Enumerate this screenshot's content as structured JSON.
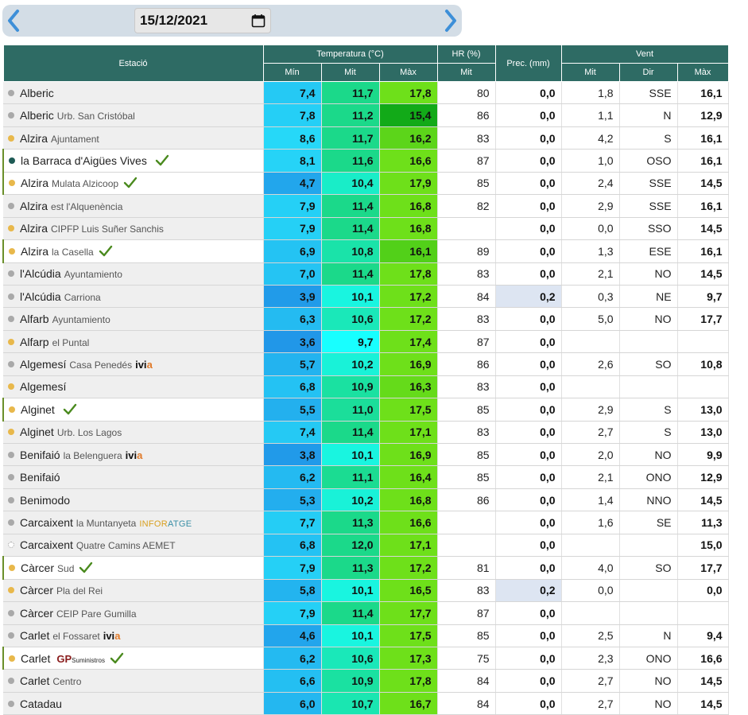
{
  "date": {
    "value": "15/12/2021",
    "prev_icon": "chevron-left-icon",
    "next_icon": "chevron-right-icon",
    "calendar_icon": "calendar-icon"
  },
  "headers": {
    "station": "Estació",
    "temperature": "Temperatura (°C)",
    "humidity": "HR (%)",
    "precipitation": "Prec. (mm)",
    "wind": "Vent",
    "sub": {
      "min": "Mín",
      "mit": "Mit",
      "max": "Màx",
      "hr_mit": "Mit",
      "wind_mit": "Mit",
      "wind_dir": "Dir",
      "wind_max": "Màx"
    }
  },
  "colors": {
    "header": "#2e6b64",
    "min_scale": [
      "#2196e8",
      "#26d8f8"
    ],
    "mit_scale": [
      "#18ffff",
      "#1bd98a"
    ],
    "max_scale": [
      "#12aa18",
      "#6ee01a"
    ],
    "rain": "#dde5f2"
  },
  "rows": [
    {
      "name": "Alberic",
      "sub": "",
      "dot": "gray",
      "hl": false,
      "check": false,
      "logo": "",
      "min": "7,4",
      "mit": "11,7",
      "max": "17,8",
      "hr": "80",
      "prec": "0,0",
      "wmit": "1,8",
      "dir": "SSE",
      "wmax": "16,1"
    },
    {
      "name": "Alberic",
      "sub": "Urb. San Cristóbal",
      "dot": "gray",
      "hl": false,
      "check": false,
      "logo": "",
      "min": "7,8",
      "mit": "11,2",
      "max": "15,4",
      "hr": "86",
      "prec": "0,0",
      "wmit": "1,1",
      "dir": "N",
      "wmax": "12,9"
    },
    {
      "name": "Alzira",
      "sub": "Ajuntament",
      "dot": "yellow",
      "hl": false,
      "check": false,
      "logo": "",
      "min": "8,6",
      "mit": "11,7",
      "max": "16,2",
      "hr": "83",
      "prec": "0,0",
      "wmit": "4,2",
      "dir": "S",
      "wmax": "16,1"
    },
    {
      "name": "la Barraca d'Aigües Vives",
      "sub": "",
      "dot": "teal",
      "hl": true,
      "check": true,
      "logo": "",
      "min": "8,1",
      "mit": "11,6",
      "max": "16,6",
      "hr": "87",
      "prec": "0,0",
      "wmit": "1,0",
      "dir": "OSO",
      "wmax": "16,1"
    },
    {
      "name": "Alzira",
      "sub": "Mulata Alzicoop",
      "dot": "yellow",
      "hl": true,
      "check": true,
      "logo": "",
      "min": "4,7",
      "mit": "10,4",
      "max": "17,9",
      "hr": "85",
      "prec": "0,0",
      "wmit": "2,4",
      "dir": "SSE",
      "wmax": "14,5"
    },
    {
      "name": "Alzira",
      "sub": "est l'Alquenència",
      "dot": "gray",
      "hl": false,
      "check": false,
      "logo": "",
      "min": "7,9",
      "mit": "11,4",
      "max": "16,8",
      "hr": "82",
      "prec": "0,0",
      "wmit": "2,9",
      "dir": "SSE",
      "wmax": "16,1"
    },
    {
      "name": "Alzira",
      "sub": "CIPFP Luis Suñer Sanchis",
      "dot": "yellow",
      "hl": false,
      "check": false,
      "logo": "",
      "min": "7,9",
      "mit": "11,4",
      "max": "16,8",
      "hr": "",
      "prec": "0,0",
      "wmit": "0,0",
      "dir": "SSO",
      "wmax": "14,5"
    },
    {
      "name": "Alzira",
      "sub": "la Casella",
      "dot": "yellow",
      "hl": true,
      "check": true,
      "logo": "",
      "min": "6,9",
      "mit": "10,8",
      "max": "16,1",
      "hr": "89",
      "prec": "0,0",
      "wmit": "1,3",
      "dir": "ESE",
      "wmax": "16,1"
    },
    {
      "name": "l'Alcúdia",
      "sub": "Ayuntamiento",
      "dot": "gray",
      "hl": false,
      "check": false,
      "logo": "",
      "min": "7,0",
      "mit": "11,4",
      "max": "17,8",
      "hr": "83",
      "prec": "0,0",
      "wmit": "2,1",
      "dir": "NO",
      "wmax": "14,5"
    },
    {
      "name": "l'Alcúdia",
      "sub": "Carriona",
      "dot": "gray",
      "hl": false,
      "check": false,
      "logo": "",
      "min": "3,9",
      "mit": "10,1",
      "max": "17,2",
      "hr": "84",
      "prec": "0,2",
      "wmit": "0,3",
      "dir": "NE",
      "wmax": "9,7"
    },
    {
      "name": "Alfarb",
      "sub": "Ayuntamiento",
      "dot": "gray",
      "hl": false,
      "check": false,
      "logo": "",
      "min": "6,3",
      "mit": "10,6",
      "max": "17,2",
      "hr": "83",
      "prec": "0,0",
      "wmit": "5,0",
      "dir": "NO",
      "wmax": "17,7"
    },
    {
      "name": "Alfarp",
      "sub": "el Puntal",
      "dot": "yellow",
      "hl": false,
      "check": false,
      "logo": "",
      "min": "3,6",
      "mit": "9,7",
      "max": "17,4",
      "hr": "87",
      "prec": "0,0",
      "wmit": "",
      "dir": "",
      "wmax": ""
    },
    {
      "name": "Algemesí",
      "sub": "Casa Penedés",
      "dot": "gray",
      "hl": false,
      "check": false,
      "logo": "ivia",
      "min": "5,7",
      "mit": "10,2",
      "max": "16,9",
      "hr": "86",
      "prec": "0,0",
      "wmit": "2,6",
      "dir": "SO",
      "wmax": "10,8"
    },
    {
      "name": "Algemesí",
      "sub": "",
      "dot": "yellow",
      "hl": false,
      "check": false,
      "logo": "",
      "min": "6,8",
      "mit": "10,9",
      "max": "16,3",
      "hr": "83",
      "prec": "0,0",
      "wmit": "",
      "dir": "",
      "wmax": ""
    },
    {
      "name": "Alginet",
      "sub": "",
      "dot": "yellow",
      "hl": true,
      "check": true,
      "logo": "",
      "min": "5,5",
      "mit": "11,0",
      "max": "17,5",
      "hr": "85",
      "prec": "0,0",
      "wmit": "2,9",
      "dir": "S",
      "wmax": "13,0"
    },
    {
      "name": "Alginet",
      "sub": "Urb. Los Lagos",
      "dot": "yellow",
      "hl": false,
      "check": false,
      "logo": "",
      "min": "7,4",
      "mit": "11,4",
      "max": "17,1",
      "hr": "83",
      "prec": "0,0",
      "wmit": "2,7",
      "dir": "S",
      "wmax": "13,0"
    },
    {
      "name": "Benifaió",
      "sub": "la Belenguera",
      "dot": "gray",
      "hl": false,
      "check": false,
      "logo": "ivia",
      "min": "3,8",
      "mit": "10,1",
      "max": "16,9",
      "hr": "85",
      "prec": "0,0",
      "wmit": "2,0",
      "dir": "NO",
      "wmax": "9,9"
    },
    {
      "name": "Benifaió",
      "sub": "",
      "dot": "gray",
      "hl": false,
      "check": false,
      "logo": "",
      "min": "6,2",
      "mit": "11,1",
      "max": "16,4",
      "hr": "85",
      "prec": "0,0",
      "wmit": "2,1",
      "dir": "ONO",
      "wmax": "12,9"
    },
    {
      "name": "Benimodo",
      "sub": "",
      "dot": "gray",
      "hl": false,
      "check": false,
      "logo": "",
      "min": "5,3",
      "mit": "10,2",
      "max": "16,8",
      "hr": "86",
      "prec": "0,0",
      "wmit": "1,4",
      "dir": "NNO",
      "wmax": "14,5"
    },
    {
      "name": "Carcaixent",
      "sub": "la Muntanyeta",
      "dot": "gray",
      "hl": false,
      "check": false,
      "logo": "inforatge",
      "min": "7,7",
      "mit": "11,3",
      "max": "16,6",
      "hr": "",
      "prec": "0,0",
      "wmit": "1,6",
      "dir": "SE",
      "wmax": "11,3"
    },
    {
      "name": "Carcaixent",
      "sub": "Quatre Camins AEMET",
      "dot": "empty",
      "hl": false,
      "check": false,
      "logo": "",
      "min": "6,8",
      "mit": "12,0",
      "max": "17,1",
      "hr": "",
      "prec": "0,0",
      "wmit": "",
      "dir": "",
      "wmax": "15,0"
    },
    {
      "name": "Càrcer",
      "sub": "Sud",
      "dot": "yellow",
      "hl": true,
      "check": true,
      "logo": "",
      "min": "7,9",
      "mit": "11,3",
      "max": "17,2",
      "hr": "81",
      "prec": "0,0",
      "wmit": "4,0",
      "dir": "SO",
      "wmax": "17,7"
    },
    {
      "name": "Càrcer",
      "sub": "Pla del Rei",
      "dot": "yellow",
      "hl": false,
      "check": false,
      "logo": "",
      "min": "5,8",
      "mit": "10,1",
      "max": "16,5",
      "hr": "83",
      "prec": "0,2",
      "wmit": "0,0",
      "dir": "",
      "wmax": "0,0"
    },
    {
      "name": "Càrcer",
      "sub": "CEIP Pare Gumilla",
      "dot": "gray",
      "hl": false,
      "check": false,
      "logo": "",
      "min": "7,9",
      "mit": "11,4",
      "max": "17,7",
      "hr": "87",
      "prec": "0,0",
      "wmit": "",
      "dir": "",
      "wmax": ""
    },
    {
      "name": "Carlet",
      "sub": "el Fossaret",
      "dot": "gray",
      "hl": false,
      "check": false,
      "logo": "ivia",
      "min": "4,6",
      "mit": "10,1",
      "max": "17,5",
      "hr": "85",
      "prec": "0,0",
      "wmit": "2,5",
      "dir": "N",
      "wmax": "9,4"
    },
    {
      "name": "Carlet",
      "sub": "",
      "dot": "yellow",
      "hl": true,
      "check": true,
      "logo": "gp",
      "min": "6,2",
      "mit": "10,6",
      "max": "17,3",
      "hr": "75",
      "prec": "0,0",
      "wmit": "2,3",
      "dir": "ONO",
      "wmax": "16,6"
    },
    {
      "name": "Carlet",
      "sub": "Centro",
      "dot": "gray",
      "hl": false,
      "check": false,
      "logo": "",
      "min": "6,6",
      "mit": "10,9",
      "max": "17,8",
      "hr": "84",
      "prec": "0,0",
      "wmit": "2,7",
      "dir": "NO",
      "wmax": "14,5"
    },
    {
      "name": "Catadau",
      "sub": "",
      "dot": "gray",
      "hl": false,
      "check": false,
      "logo": "",
      "min": "6,0",
      "mit": "10,7",
      "max": "16,7",
      "hr": "84",
      "prec": "0,0",
      "wmit": "2,7",
      "dir": "NO",
      "wmax": "14,5"
    }
  ],
  "logos": {
    "ivia": {
      "a": "ivi",
      "b": "a"
    },
    "inforatge": {
      "a": "INFOR",
      "b": "ATGE"
    },
    "gp": {
      "a": "GP",
      "b": "Suministros"
    }
  }
}
